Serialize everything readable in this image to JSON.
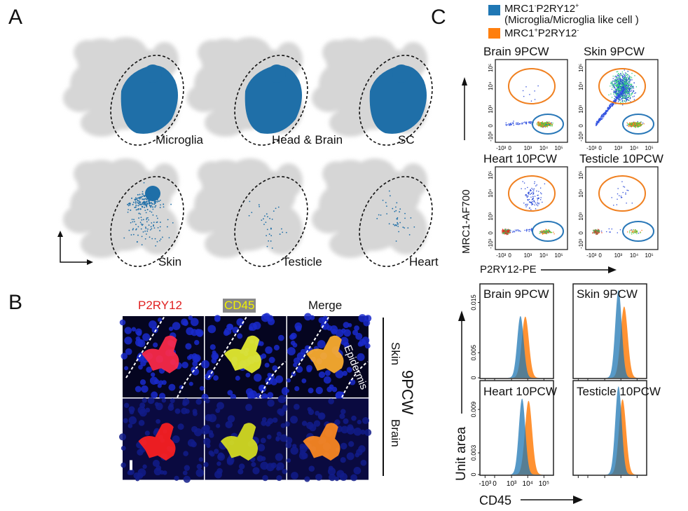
{
  "panels": {
    "a": "A",
    "b": "B",
    "c": "C"
  },
  "panel_a": {
    "umaps": [
      {
        "label": "Microglia"
      },
      {
        "label": "Head & Brain"
      },
      {
        "label": "SC"
      },
      {
        "label": "Skin"
      },
      {
        "label": "Testicle"
      },
      {
        "label": "Heart"
      }
    ],
    "colors": {
      "background_cells": "#d6d6d6",
      "highlight": "#1f6fa8"
    }
  },
  "panel_b": {
    "columns": [
      {
        "label": "P2RY12",
        "color": "#e02020"
      },
      {
        "label": "CD45",
        "color": "#f2f200"
      },
      {
        "label": "Merge",
        "color": "#111111"
      }
    ],
    "rows": [
      "Skin",
      "Brain"
    ],
    "group_label": "9PCW",
    "annotation": "Epidermis"
  },
  "panel_c": {
    "legend": [
      {
        "main": "MRC1",
        "sup1": "-",
        "mid": "P2RY12",
        "sup2": "+",
        "sub": "(Microglia/Microglia like cell )",
        "color": "#1f77b4"
      },
      {
        "main": "MRC1",
        "sup1": "+",
        "mid": "P2RY12",
        "sup2": "-",
        "sub": "",
        "color": "#ff7f0e"
      }
    ],
    "scatter": {
      "xlabel": "P2RY12-PE",
      "ylabel": "MRC1-AF700",
      "x_ticks": [
        "-10³",
        "0",
        "10³",
        "10⁴",
        "10⁵"
      ],
      "y_ticks": [
        "10⁵",
        "10⁴",
        "10³",
        "0",
        "-10³"
      ],
      "plots": [
        {
          "title": "Brain 9PCW"
        },
        {
          "title": "Skin 9PCW"
        },
        {
          "title": "Heart 10PCW"
        },
        {
          "title": "Testicle 10PCW"
        }
      ]
    }
  },
  "chart_data": [
    {
      "type": "area",
      "xlabel": "CD45",
      "ylabel": "Unit area",
      "x_ticks": [
        "-10³",
        "0",
        "10³",
        "10⁴",
        "10⁵"
      ],
      "x_scale": "biexponential",
      "series_colors": [
        "#1f77b4",
        "#ff7f0e"
      ],
      "panels": [
        {
          "title": "Brain 9PCW",
          "y_ticks": [
            "0.015",
            "0.005",
            "0"
          ],
          "ylim": [
            0,
            0.018
          ],
          "peaks": [
            {
              "log10_cd45": 3.55,
              "height": 0.0123
            },
            {
              "log10_cd45": 3.85,
              "height": 0.0122
            }
          ]
        },
        {
          "title": "Skin 9PCW",
          "y_ticks": [],
          "ylim": [
            0,
            0.018
          ],
          "peaks": [
            {
              "log10_cd45": 3.85,
              "height": 0.0175
            },
            {
              "log10_cd45": 4.2,
              "height": 0.0142
            }
          ]
        },
        {
          "title": "Heart 10PCW",
          "y_ticks": [
            "0.009",
            "0.003",
            "0"
          ],
          "ylim": [
            0,
            0.0125
          ],
          "peaks": [
            {
              "log10_cd45": 3.65,
              "height": 0.0105
            },
            {
              "log10_cd45": 4.05,
              "height": 0.0102
            }
          ]
        },
        {
          "title": "Testicle 10PCW",
          "y_ticks": [],
          "ylim": [
            0,
            0.0125
          ],
          "peaks": [
            {
              "log10_cd45": 3.85,
              "height": 0.0122
            },
            {
              "log10_cd45": 4.1,
              "height": 0.0104
            }
          ]
        }
      ]
    }
  ]
}
